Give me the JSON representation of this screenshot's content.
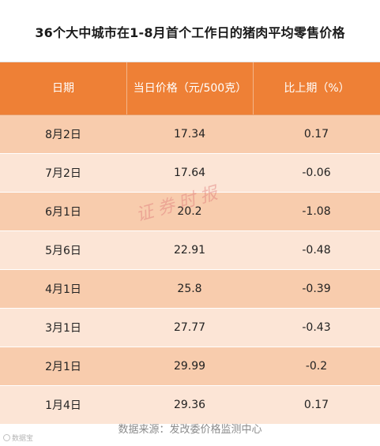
{
  "title": "36个大中城市在1-8月首个工作日的猪肉平均零售价格",
  "table": {
    "headers": [
      "日期",
      "当日价格（元/500克）",
      "比上期（%）"
    ],
    "rows": [
      [
        "8月2日",
        "17.34",
        "0.17"
      ],
      [
        "7月2日",
        "17.64",
        "-0.06"
      ],
      [
        "6月1日",
        "20.2",
        "-1.08"
      ],
      [
        "5月6日",
        "22.91",
        "-0.48"
      ],
      [
        "4月1日",
        "25.8",
        "-0.39"
      ],
      [
        "3月1日",
        "27.77",
        "-0.43"
      ],
      [
        "2月1日",
        "29.99",
        "-0.2"
      ],
      [
        "1月4日",
        "29.36",
        "0.17"
      ]
    ]
  },
  "watermark": "证券时报",
  "source": "数据来源：发改委价格监测中心",
  "corner_logo": "数据宝",
  "colors": {
    "header_bg": "#ee8036",
    "row_dark": "#f8ccad",
    "row_light": "#fce5d6"
  }
}
